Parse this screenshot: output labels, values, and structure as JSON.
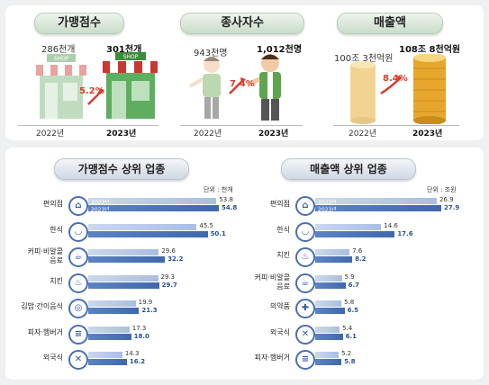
{
  "top": {
    "stores": {
      "title": "가맹점수",
      "v2022": "286천개",
      "v2023": "301천개",
      "growth": "5.2%",
      "shop_sign": "SHOP"
    },
    "workers": {
      "title": "종사자수",
      "v2022": "943천명",
      "v2023": "1,012천명",
      "growth": "7.4%"
    },
    "sales": {
      "title": "매출액",
      "v2022": "100조 3천억원",
      "v2023": "108조 8천억원",
      "growth": "8.4%"
    },
    "year_a": "2022년",
    "year_b": "2023년"
  },
  "unit_left": "단위 : 천개",
  "unit_right": "단위 : 조원",
  "colors": {
    "bar2022": "#a9bfe0",
    "bar2023": "#3f68ae",
    "growth": "#e03c2c"
  },
  "chart_data": [
    {
      "type": "bar",
      "title": "가맹점수 상위 업종",
      "orientation": "horizontal",
      "categories": [
        "편의점",
        "한식",
        "커피·비알콜 음료",
        "치킨",
        "김밥·간이음식",
        "피자·햄버거",
        "외국식"
      ],
      "series": [
        {
          "name": "2022년",
          "values": [
            53.8,
            45.5,
            29.6,
            29.3,
            19.9,
            17.3,
            14.3
          ]
        },
        {
          "name": "2023년",
          "values": [
            54.8,
            50.1,
            32.2,
            29.7,
            21.3,
            18.0,
            16.2
          ]
        }
      ],
      "icons": [
        "store-icon",
        "rice-bowl-icon",
        "coffee-icon",
        "chicken-icon",
        "gimbap-icon",
        "burger-icon",
        "cutlery-icon"
      ]
    },
    {
      "type": "bar",
      "title": "매출액 상위 업종",
      "orientation": "horizontal",
      "categories": [
        "편의점",
        "한식",
        "치킨",
        "커피·비알콜 음료",
        "의약품",
        "외국식",
        "피자·햄버거"
      ],
      "series": [
        {
          "name": "2022년",
          "values": [
            26.9,
            14.6,
            7.6,
            5.9,
            5.8,
            5.4,
            5.2
          ]
        },
        {
          "name": "2023년",
          "values": [
            27.9,
            17.6,
            8.2,
            6.7,
            6.5,
            6.1,
            5.8
          ]
        }
      ],
      "icons": [
        "store-icon",
        "rice-bowl-icon",
        "chicken-icon",
        "coffee-icon",
        "medicine-icon",
        "cutlery-icon",
        "burger-icon"
      ]
    }
  ]
}
